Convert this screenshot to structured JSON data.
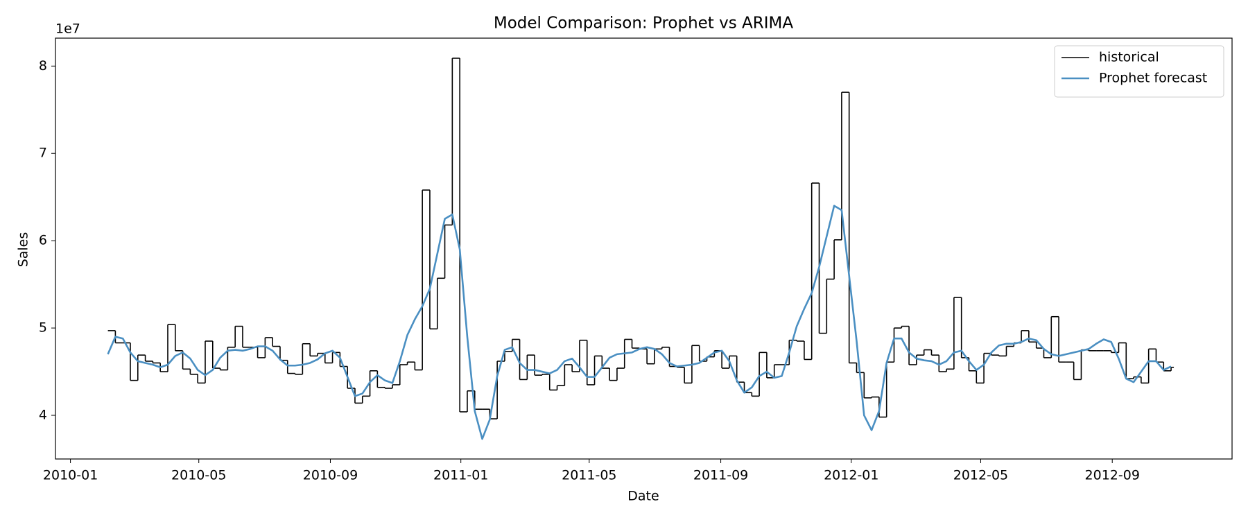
{
  "chart_data": {
    "type": "line",
    "style": "steps-post",
    "title": "Model Comparison: Prophet vs ARIMA",
    "x_label": "Date",
    "y_label": "Sales",
    "y_offset_label": "1e7",
    "legend": "upper right",
    "grid": false,
    "xlim": [
      "2009-12-18",
      "2012-12-22"
    ],
    "ylim": [
      3.5,
      8.32
    ],
    "xticks": [
      {
        "value": "2010-01-01",
        "label": "2010-01"
      },
      {
        "value": "2010-05-01",
        "label": "2010-05"
      },
      {
        "value": "2010-09-01",
        "label": "2010-09"
      },
      {
        "value": "2011-01-01",
        "label": "2011-01"
      },
      {
        "value": "2011-05-01",
        "label": "2011-05"
      },
      {
        "value": "2011-09-01",
        "label": "2011-09"
      },
      {
        "value": "2012-01-01",
        "label": "2012-01"
      },
      {
        "value": "2012-05-01",
        "label": "2012-05"
      },
      {
        "value": "2012-09-01",
        "label": "2012-09"
      }
    ],
    "yticks": [
      4,
      5,
      6,
      7,
      8
    ],
    "x": [
      "2010-02-05",
      "2010-02-12",
      "2010-02-19",
      "2010-02-26",
      "2010-03-05",
      "2010-03-12",
      "2010-03-19",
      "2010-03-26",
      "2010-04-02",
      "2010-04-09",
      "2010-04-16",
      "2010-04-23",
      "2010-04-30",
      "2010-05-07",
      "2010-05-14",
      "2010-05-21",
      "2010-05-28",
      "2010-06-04",
      "2010-06-11",
      "2010-06-18",
      "2010-06-25",
      "2010-07-02",
      "2010-07-09",
      "2010-07-16",
      "2010-07-23",
      "2010-07-30",
      "2010-08-06",
      "2010-08-13",
      "2010-08-20",
      "2010-08-27",
      "2010-09-03",
      "2010-09-10",
      "2010-09-17",
      "2010-09-24",
      "2010-10-01",
      "2010-10-08",
      "2010-10-15",
      "2010-10-22",
      "2010-10-29",
      "2010-11-05",
      "2010-11-12",
      "2010-11-19",
      "2010-11-26",
      "2010-12-03",
      "2010-12-10",
      "2010-12-17",
      "2010-12-24",
      "2010-12-31",
      "2011-01-07",
      "2011-01-14",
      "2011-01-21",
      "2011-01-28",
      "2011-02-04",
      "2011-02-11",
      "2011-02-18",
      "2011-02-25",
      "2011-03-04",
      "2011-03-11",
      "2011-03-18",
      "2011-03-25",
      "2011-04-01",
      "2011-04-08",
      "2011-04-15",
      "2011-04-22",
      "2011-04-29",
      "2011-05-06",
      "2011-05-13",
      "2011-05-20",
      "2011-05-27",
      "2011-06-03",
      "2011-06-10",
      "2011-06-17",
      "2011-06-24",
      "2011-07-01",
      "2011-07-08",
      "2011-07-15",
      "2011-07-22",
      "2011-07-29",
      "2011-08-05",
      "2011-08-12",
      "2011-08-19",
      "2011-08-26",
      "2011-09-02",
      "2011-09-09",
      "2011-09-16",
      "2011-09-23",
      "2011-09-30",
      "2011-10-07",
      "2011-10-14",
      "2011-10-21",
      "2011-10-28",
      "2011-11-04",
      "2011-11-11",
      "2011-11-18",
      "2011-11-25",
      "2011-12-02",
      "2011-12-09",
      "2011-12-16",
      "2011-12-23",
      "2011-12-30",
      "2012-01-06",
      "2012-01-13",
      "2012-01-20",
      "2012-01-27",
      "2012-02-03",
      "2012-02-10",
      "2012-02-17",
      "2012-02-24",
      "2012-03-02",
      "2012-03-09",
      "2012-03-16",
      "2012-03-23",
      "2012-03-30",
      "2012-04-06",
      "2012-04-13",
      "2012-04-20",
      "2012-04-27",
      "2012-05-04",
      "2012-05-11",
      "2012-05-18",
      "2012-05-25",
      "2012-06-01",
      "2012-06-08",
      "2012-06-15",
      "2012-06-22",
      "2012-06-29",
      "2012-07-06",
      "2012-07-13",
      "2012-07-20",
      "2012-07-27",
      "2012-08-03",
      "2012-08-10",
      "2012-08-17",
      "2012-08-24",
      "2012-08-31",
      "2012-09-07",
      "2012-09-14",
      "2012-09-21",
      "2012-09-28",
      "2012-10-05",
      "2012-10-12",
      "2012-10-19",
      "2012-10-26"
    ],
    "series": [
      {
        "name": "historical",
        "color": "#000000",
        "style": "steps-post",
        "values": [
          4.97,
          4.83,
          4.83,
          4.4,
          4.69,
          4.62,
          4.6,
          4.5,
          5.04,
          4.74,
          4.53,
          4.47,
          4.37,
          4.85,
          4.54,
          4.52,
          4.78,
          5.02,
          4.78,
          4.78,
          4.66,
          4.89,
          4.79,
          4.63,
          4.48,
          4.47,
          4.82,
          4.68,
          4.71,
          4.6,
          4.72,
          4.56,
          4.31,
          4.14,
          4.22,
          4.51,
          4.32,
          4.31,
          4.35,
          4.58,
          4.61,
          4.52,
          6.58,
          4.99,
          5.57,
          6.18,
          8.09,
          4.04,
          4.28,
          4.07,
          4.07,
          3.96,
          4.62,
          4.73,
          4.87,
          4.41,
          4.69,
          4.46,
          4.47,
          4.29,
          4.34,
          4.58,
          4.5,
          4.86,
          4.35,
          4.68,
          4.54,
          4.4,
          4.54,
          4.87,
          4.77,
          4.76,
          4.59,
          4.76,
          4.78,
          4.56,
          4.55,
          4.37,
          4.8,
          4.62,
          4.67,
          4.74,
          4.54,
          4.68,
          4.38,
          4.26,
          4.22,
          4.72,
          4.43,
          4.58,
          4.58,
          4.86,
          4.85,
          4.64,
          6.66,
          4.94,
          5.56,
          6.01,
          7.7,
          4.6,
          4.49,
          4.2,
          4.21,
          3.98,
          4.61,
          5.0,
          5.02,
          4.58,
          4.69,
          4.75,
          4.69,
          4.5,
          4.53,
          5.35,
          4.66,
          4.51,
          4.37,
          4.71,
          4.69,
          4.68,
          4.79,
          4.83,
          4.97,
          4.84,
          4.77,
          4.66,
          5.13,
          4.61,
          4.61,
          4.41,
          4.75,
          4.74,
          4.74,
          4.74,
          4.72,
          4.83,
          4.42,
          4.44,
          4.37,
          4.76,
          4.61,
          4.51,
          4.55
        ]
      },
      {
        "name": "Prophet forecast",
        "color": "#4a8fc2",
        "style": "smooth",
        "values": [
          4.7,
          4.9,
          4.88,
          4.72,
          4.62,
          4.6,
          4.58,
          4.55,
          4.58,
          4.68,
          4.72,
          4.65,
          4.52,
          4.46,
          4.52,
          4.66,
          4.74,
          4.75,
          4.74,
          4.76,
          4.79,
          4.79,
          4.74,
          4.64,
          4.57,
          4.57,
          4.58,
          4.6,
          4.64,
          4.71,
          4.74,
          4.66,
          4.44,
          4.22,
          4.25,
          4.38,
          4.46,
          4.4,
          4.37,
          4.62,
          4.92,
          5.1,
          5.25,
          5.45,
          5.85,
          6.25,
          6.3,
          5.9,
          4.9,
          4.05,
          3.73,
          3.95,
          4.45,
          4.75,
          4.78,
          4.6,
          4.52,
          4.52,
          4.5,
          4.48,
          4.52,
          4.62,
          4.65,
          4.55,
          4.44,
          4.44,
          4.55,
          4.66,
          4.7,
          4.71,
          4.72,
          4.76,
          4.78,
          4.76,
          4.7,
          4.6,
          4.56,
          4.57,
          4.58,
          4.6,
          4.66,
          4.72,
          4.74,
          4.62,
          4.4,
          4.26,
          4.32,
          4.45,
          4.5,
          4.43,
          4.45,
          4.72,
          5.02,
          5.22,
          5.4,
          5.7,
          6.05,
          6.4,
          6.35,
          5.6,
          4.85,
          4.0,
          3.83,
          4.05,
          4.6,
          4.88,
          4.88,
          4.72,
          4.65,
          4.63,
          4.62,
          4.58,
          4.62,
          4.72,
          4.74,
          4.62,
          4.52,
          4.58,
          4.72,
          4.8,
          4.82,
          4.82,
          4.84,
          4.88,
          4.86,
          4.76,
          4.7,
          4.68,
          4.7,
          4.72,
          4.74,
          4.76,
          4.82,
          4.87,
          4.84,
          4.65,
          4.42,
          4.38,
          4.5,
          4.62,
          4.62,
          4.52,
          4.56
        ]
      }
    ]
  }
}
